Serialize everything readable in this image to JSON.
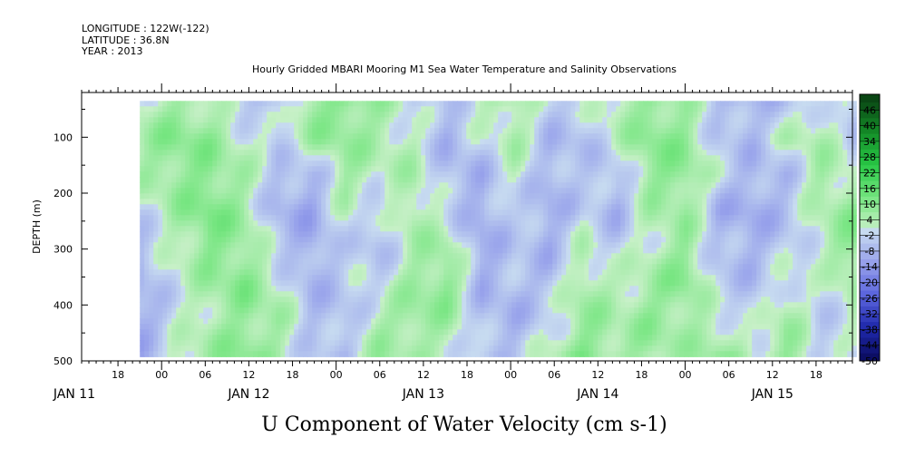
{
  "header": {
    "longitude": "LONGITUDE : 122W(-122)",
    "latitude": "LATITUDE : 36.8N",
    "year": "YEAR : 2013"
  },
  "chart_data": {
    "type": "heatmap",
    "title": "Hourly Gridded MBARI Mooring M1 Sea Water Temperature and Salinity Observations",
    "xlabel": "U Component of Water Velocity (cm s-1)",
    "ylabel": "DEPTH (m)",
    "x_hour_labels": [
      "18",
      "00",
      "06",
      "12",
      "18",
      "00",
      "06",
      "12",
      "18",
      "00",
      "06",
      "12",
      "18",
      "00",
      "06",
      "12",
      "18"
    ],
    "x_hour_values": [
      -6,
      0,
      6,
      12,
      18,
      24,
      30,
      36,
      42,
      48,
      54,
      60,
      66,
      72,
      78,
      84,
      90
    ],
    "x_date_labels": [
      "JAN 11",
      "JAN 12",
      "JAN 13",
      "JAN 14",
      "JAN 15"
    ],
    "x_date_values": [
      -12,
      12,
      36,
      60,
      84
    ],
    "xlim_hours_from_jan12": [
      -11,
      95
    ],
    "y_ticks": [
      "100",
      "200",
      "300",
      "400",
      "500"
    ],
    "y_tick_values": [
      100,
      200,
      300,
      400,
      500
    ],
    "ylim": [
      500,
      20
    ],
    "data_x_range_hours": [
      -3,
      95
    ],
    "data_y_range_m": [
      35,
      485
    ],
    "colorbar": {
      "labels": [
        "46",
        "40",
        "34",
        "28",
        "22",
        "16",
        "10",
        "4",
        "-2",
        "-8",
        "-14",
        "-20",
        "-26",
        "-32",
        "-38",
        "-44",
        "-50"
      ],
      "range": [
        -50,
        52
      ],
      "step": 3
    },
    "u_field_coarse": [
      [
        2,
        6,
        4,
        -4,
        -6,
        8,
        10,
        6,
        -2,
        -6,
        2,
        6,
        -4,
        -2,
        4,
        8,
        6,
        -6,
        -8,
        -4,
        2,
        -6
      ],
      [
        6,
        10,
        8,
        2,
        -2,
        6,
        8,
        4,
        2,
        -8,
        -2,
        4,
        -6,
        -6,
        2,
        10,
        8,
        -4,
        -6,
        2,
        4,
        -4
      ],
      [
        4,
        8,
        10,
        4,
        -6,
        -8,
        6,
        2,
        4,
        -6,
        -8,
        2,
        -8,
        -4,
        -6,
        8,
        10,
        -2,
        -8,
        -6,
        6,
        2
      ],
      [
        -2,
        6,
        12,
        6,
        -8,
        -10,
        2,
        -4,
        6,
        -2,
        -10,
        -2,
        -10,
        -2,
        -8,
        4,
        6,
        -8,
        -10,
        -6,
        4,
        8
      ],
      [
        -6,
        2,
        10,
        8,
        -4,
        -10,
        -2,
        -6,
        4,
        6,
        -10,
        -4,
        -8,
        2,
        -4,
        2,
        8,
        -6,
        -8,
        -4,
        2,
        10
      ],
      [
        -8,
        0,
        6,
        10,
        2,
        -8,
        -4,
        -2,
        6,
        10,
        -8,
        -6,
        -6,
        6,
        2,
        6,
        10,
        -4,
        -6,
        2,
        -2,
        6
      ],
      [
        -10,
        -2,
        4,
        8,
        6,
        -6,
        -6,
        4,
        8,
        6,
        -6,
        -8,
        -2,
        8,
        4,
        8,
        6,
        2,
        -4,
        6,
        -4,
        2
      ],
      [
        -8,
        2,
        6,
        10,
        4,
        -4,
        -4,
        6,
        4,
        2,
        -2,
        -6,
        2,
        10,
        6,
        6,
        4,
        8,
        2,
        8,
        -2,
        -4
      ]
    ]
  }
}
